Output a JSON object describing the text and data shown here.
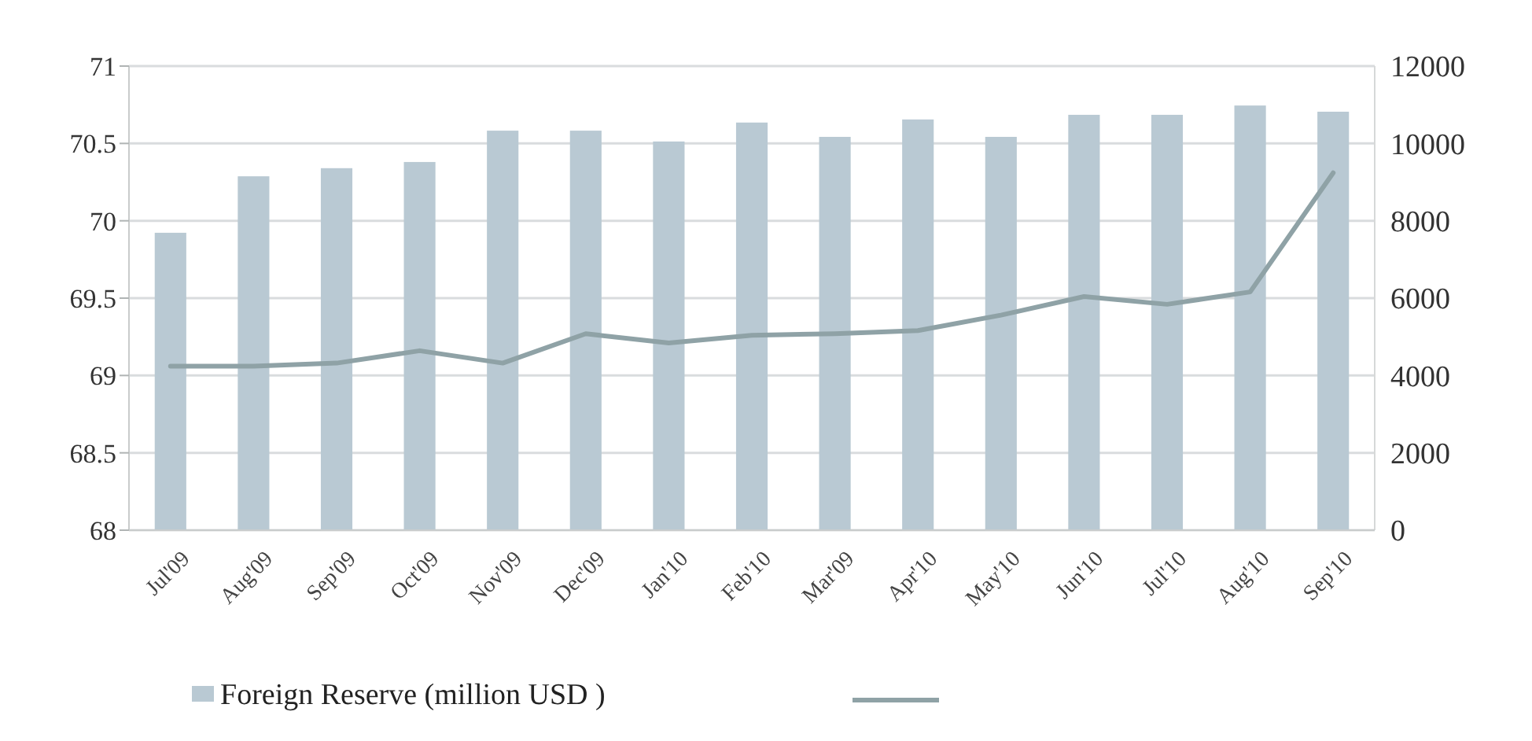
{
  "chart_data": {
    "type": "bar",
    "categories": [
      "Jul'09",
      "Aug'09",
      "Sep'09",
      "Oct'09",
      "Nov'09",
      "Dec'09",
      "Jan'10",
      "Feb'10",
      "Mar'09",
      "Apr'10",
      "May'10",
      "Jun'10",
      "Jul'10",
      "Aug'10",
      "Sep'10"
    ],
    "series": [
      {
        "name": "Foreign Reserve (million USD )",
        "axis": "y2",
        "color": "#b9c9d3",
        "values": [
          7690,
          9150,
          9360,
          9520,
          10330,
          10330,
          10050,
          10540,
          10170,
          10620,
          10170,
          10740,
          10740,
          10980,
          10820
        ]
      },
      {
        "type": "line",
        "axis": "y",
        "color": "#8fa2a6",
        "values": [
          69.06,
          69.06,
          69.08,
          69.16,
          69.08,
          69.27,
          69.21,
          69.26,
          69.27,
          69.29,
          69.39,
          69.51,
          69.46,
          69.54,
          70.31
        ]
      }
    ],
    "ylim": [
      68,
      71
    ],
    "yticks": [
      68,
      68.5,
      69,
      69.5,
      70,
      70.5,
      71
    ],
    "y2lim": [
      0,
      12000
    ],
    "y2ticks": [
      0,
      2000,
      4000,
      6000,
      8000,
      10000,
      12000
    ],
    "grid": "y",
    "legend": "bottom",
    "line_style": "solid",
    "marker": "none"
  }
}
